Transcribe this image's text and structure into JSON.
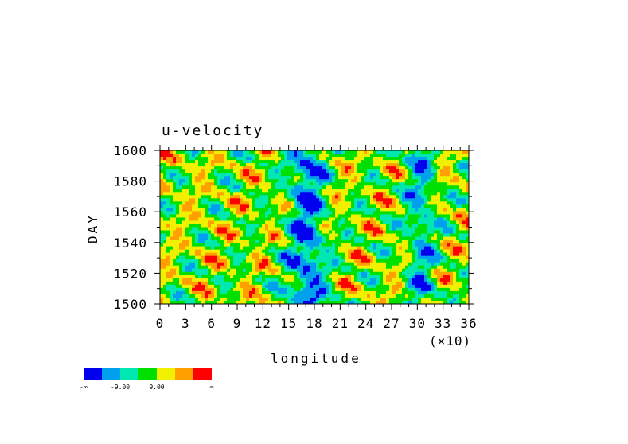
{
  "chart_data": {
    "type": "heatmap",
    "title": "u-velocity",
    "xlabel": "longitude",
    "xscale_note": "(×10)",
    "ylabel": "DAY",
    "x_ticks": [
      "0",
      "3",
      "6",
      "9",
      "12",
      "15",
      "18",
      "21",
      "24",
      "27",
      "30",
      "33",
      "36"
    ],
    "y_ticks": [
      "1500",
      "1520",
      "1540",
      "1560",
      "1580",
      "1600"
    ],
    "xlim": [
      0,
      36
    ],
    "ylim": [
      1500,
      1600
    ],
    "colorbar": {
      "colors": [
        "#0000ee",
        "#00a0ee",
        "#00e8b0",
        "#00e000",
        "#f0f000",
        "#ffa000",
        "#ff0000"
      ],
      "labels": [
        "-∞",
        "-9.00",
        "9.00",
        "∞"
      ]
    }
  }
}
